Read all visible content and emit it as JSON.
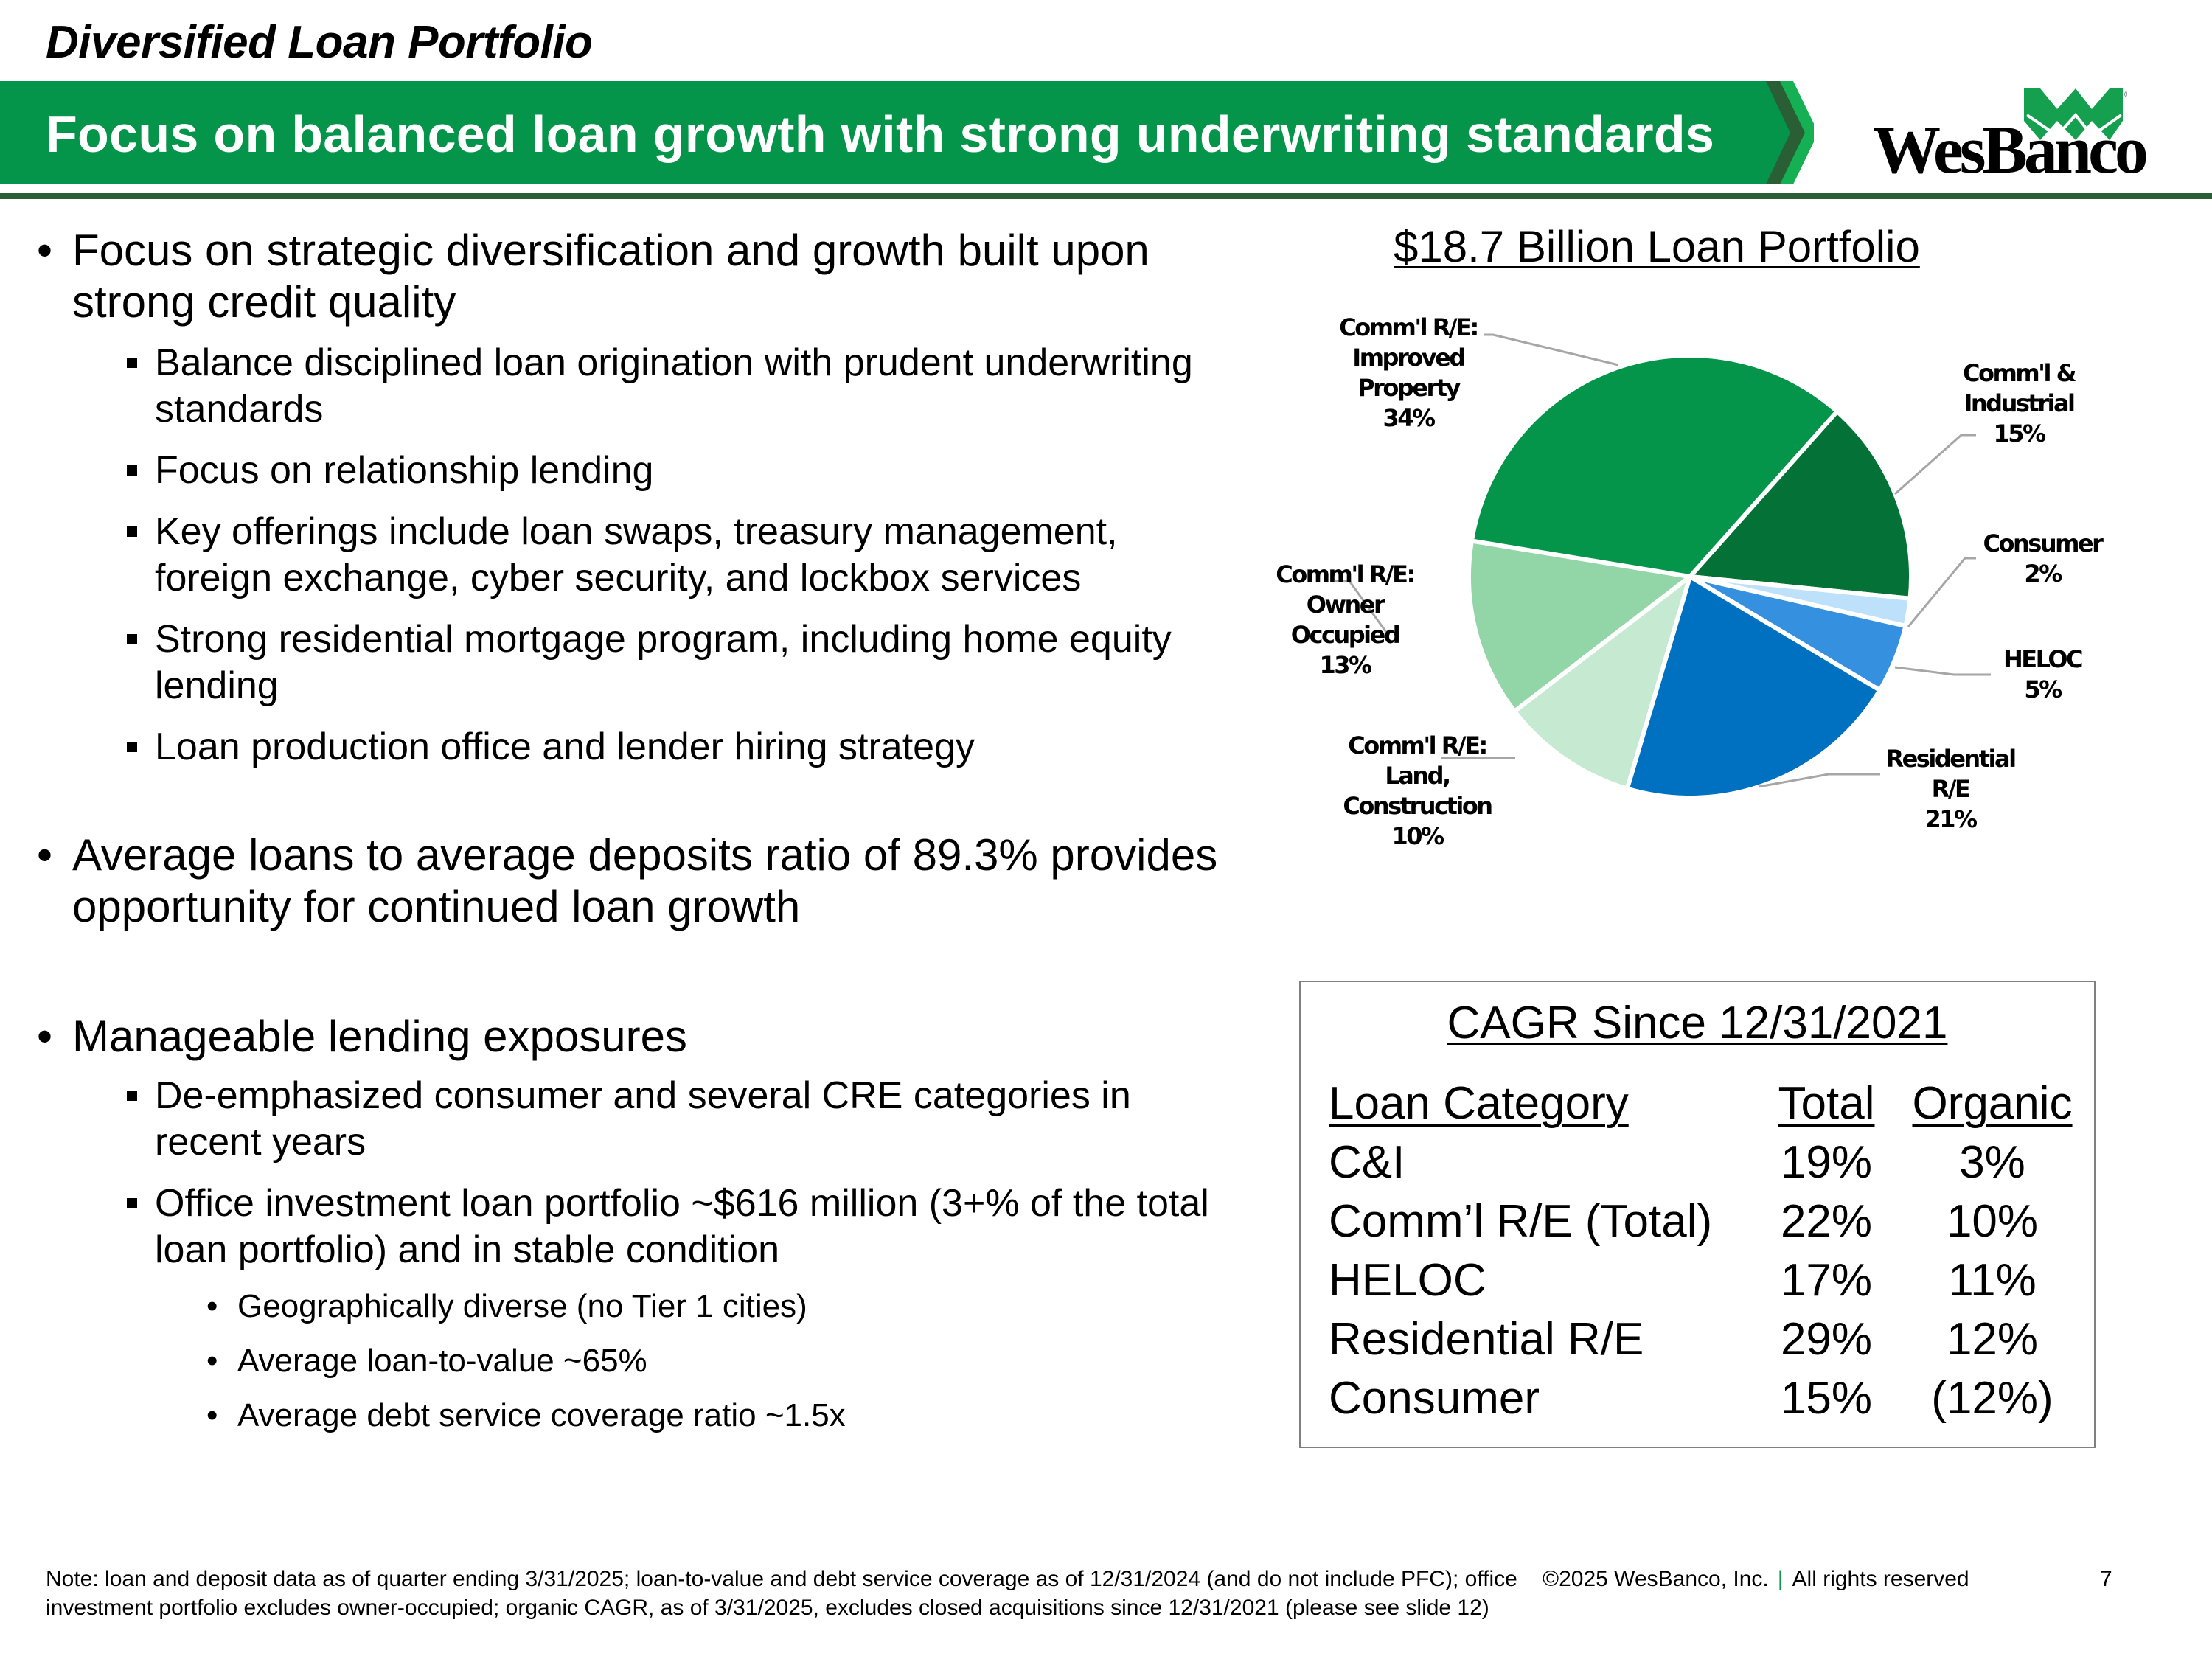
{
  "header": {
    "section_title": "Diversified Loan Portfolio",
    "banner_title": "Focus on balanced loan growth with strong underwriting standards",
    "logo_text": "WesBanco",
    "colors": {
      "banner_green": "#04944a",
      "banner_dark": "#2a5e35",
      "logo_green": "#15a04f"
    }
  },
  "left": {
    "bullets": [
      {
        "level": 1,
        "text": "Focus on strategic diversification and growth built upon strong credit quality"
      },
      {
        "level": 2,
        "text": "Balance disciplined loan origination with prudent underwriting standards"
      },
      {
        "level": 2,
        "text": "Focus on relationship lending"
      },
      {
        "level": 2,
        "text": "Key offerings include loan swaps, treasury management, foreign exchange, cyber security, and lockbox services"
      },
      {
        "level": 2,
        "text": "Strong residential mortgage program, including home equity lending"
      },
      {
        "level": 2,
        "text": "Loan production office and lender hiring strategy"
      },
      {
        "level": 1,
        "text": "Average loans to average deposits ratio of 89.3% provides opportunity for continued loan growth"
      },
      {
        "level": 1,
        "text": "Manageable lending exposures"
      },
      {
        "level": 2,
        "text": "De-emphasized consumer and several CRE categories in recent years"
      },
      {
        "level": 2,
        "text": "Office investment loan portfolio ~$616 million (3+% of the total loan portfolio) and in stable condition"
      },
      {
        "level": 3,
        "text": "Geographically diverse (no Tier 1 cities)"
      },
      {
        "level": 3,
        "text": "Average loan-to-value ~65%"
      },
      {
        "level": 3,
        "text": "Average debt service coverage ratio ~1.5x"
      }
    ]
  },
  "chart_data": {
    "type": "pie",
    "title": "$18.7 Billion Loan Portfolio",
    "start_angle_deg": 41.7,
    "direction": "clockwise",
    "categories": [
      "Comm'l & Industrial",
      "Consumer",
      "HELOC",
      "Residential R/E",
      "Comm'l R/E: Land, Construction",
      "Comm'l R/E: Owner Occupied",
      "Comm'l R/E: Improved Property"
    ],
    "values": [
      15,
      2,
      5,
      21,
      10,
      13,
      34
    ],
    "unit": "%",
    "colors": [
      "#047236",
      "#bde0fb",
      "#3590e0",
      "#0070c0",
      "#c6e9d2",
      "#92d6a8",
      "#04944a"
    ],
    "labels": [
      {
        "lines": [
          "Comm'l &",
          "Industrial",
          "15%"
        ]
      },
      {
        "lines": [
          "Consumer",
          "2%"
        ]
      },
      {
        "lines": [
          "HELOC",
          "5%"
        ]
      },
      {
        "lines": [
          "Residential",
          "R/E",
          "21%"
        ]
      },
      {
        "lines": [
          "Comm'l R/E:",
          "Land,",
          "Construction",
          "10%"
        ]
      },
      {
        "lines": [
          "Comm'l R/E:",
          "Owner",
          "Occupied",
          "13%"
        ]
      },
      {
        "lines": [
          "Comm'l R/E:",
          "Improved",
          "Property",
          "34%"
        ]
      }
    ],
    "legend": "none (data labels with leader lines)"
  },
  "cagr": {
    "title": "CAGR Since 12/31/2021",
    "headers": [
      "Loan Category",
      "Total",
      "Organic"
    ],
    "rows": [
      [
        "C&I",
        "19%",
        "3%"
      ],
      [
        "Comm’l R/E (Total)",
        "22%",
        "10%"
      ],
      [
        "HELOC",
        "17%",
        "11%"
      ],
      [
        "Residential R/E",
        "29%",
        "12%"
      ],
      [
        "Consumer",
        "15%",
        "(12%)"
      ]
    ]
  },
  "footer": {
    "note": "Note: loan and deposit data as of quarter ending 3/31/2025; loan-to-value and debt service coverage as of 12/31/2024 (and do not include PFC); office investment portfolio excludes owner-occupied; organic CAGR, as of 3/31/2025, excludes closed acquisitions since 12/31/2021 (please see slide 12)",
    "copyright": "©2025 WesBanco, Inc.",
    "rights": "All rights reserved",
    "page_number": "7"
  }
}
